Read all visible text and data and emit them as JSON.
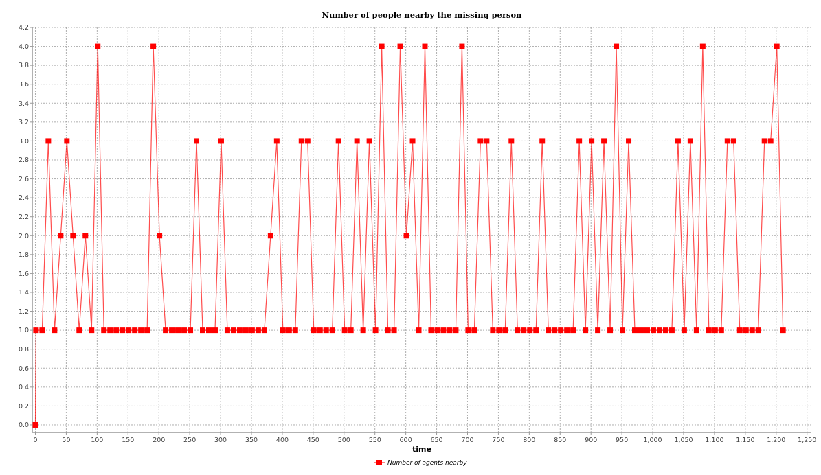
{
  "chart_data": {
    "type": "line",
    "title": "Number of people nearby the missing person",
    "xlabel": "time",
    "legend": "bottom",
    "grid": true,
    "marker": "square",
    "line_style": "solid",
    "xlim": [
      -5,
      1257
    ],
    "ylim": [
      -0.08,
      4.2
    ],
    "xticks": [
      0,
      50,
      100,
      150,
      200,
      250,
      300,
      350,
      400,
      450,
      500,
      550,
      600,
      650,
      700,
      750,
      800,
      850,
      900,
      950,
      {
        "value": 1000,
        "label": "1,000"
      },
      {
        "value": 1050,
        "label": "1,050"
      },
      {
        "value": 1100,
        "label": "1,100"
      },
      {
        "value": 1150,
        "label": "1,150"
      },
      {
        "value": 1200,
        "label": "1,200"
      },
      {
        "value": 1250,
        "label": "1,250"
      }
    ],
    "yticks": [
      {
        "value": 0,
        "label": "0.0"
      },
      0.2,
      0.4,
      0.6,
      0.8,
      {
        "value": 1,
        "label": "1.0"
      },
      1.2,
      1.4,
      1.6,
      1.8,
      {
        "value": 2,
        "label": "2.0"
      },
      2.2,
      2.4,
      2.6,
      2.8,
      {
        "value": 3,
        "label": "3.0"
      },
      3.2,
      3.4,
      3.6,
      3.8,
      {
        "value": 4,
        "label": "4.0"
      },
      4.2
    ],
    "x": [
      0,
      1,
      11,
      21,
      31,
      41,
      51,
      61,
      71,
      81,
      91,
      101,
      111,
      121,
      131,
      141,
      151,
      161,
      171,
      181,
      191,
      201,
      211,
      221,
      231,
      241,
      251,
      261,
      271,
      281,
      291,
      301,
      311,
      321,
      331,
      341,
      351,
      361,
      371,
      381,
      391,
      401,
      411,
      421,
      431,
      441,
      451,
      461,
      471,
      481,
      491,
      501,
      511,
      521,
      531,
      541,
      551,
      561,
      571,
      581,
      591,
      601,
      611,
      621,
      631,
      641,
      651,
      661,
      671,
      681,
      691,
      701,
      711,
      721,
      731,
      741,
      751,
      761,
      771,
      781,
      791,
      801,
      811,
      821,
      831,
      841,
      851,
      861,
      871,
      881,
      891,
      901,
      911,
      921,
      931,
      941,
      951,
      961,
      971,
      981,
      991,
      1001,
      1011,
      1021,
      1031,
      1041,
      1051,
      1061,
      1071,
      1081,
      1091,
      1101,
      1111,
      1121,
      1131,
      1141,
      1151,
      1161,
      1171,
      1181,
      1191,
      1201,
      1211
    ],
    "series": [
      {
        "name": "Number of agents nearby",
        "color": "#ff0000",
        "values": [
          0,
          1,
          1,
          3,
          1,
          2,
          3,
          2,
          1,
          2,
          1,
          4,
          1,
          1,
          1,
          1,
          1,
          1,
          1,
          1,
          4,
          2,
          1,
          1,
          1,
          1,
          1,
          3,
          1,
          1,
          1,
          3,
          1,
          1,
          1,
          1,
          1,
          1,
          1,
          2,
          3,
          1,
          1,
          1,
          3,
          3,
          1,
          1,
          1,
          1,
          3,
          1,
          1,
          3,
          1,
          3,
          1,
          4,
          1,
          1,
          4,
          2,
          3,
          1,
          4,
          1,
          1,
          1,
          1,
          1,
          4,
          1,
          1,
          3,
          3,
          1,
          1,
          1,
          3,
          1,
          1,
          1,
          1,
          3,
          1,
          1,
          1,
          1,
          1,
          3,
          1,
          3,
          1,
          3,
          1,
          4,
          1,
          3,
          1,
          1,
          1,
          1,
          1,
          1,
          1,
          3,
          1,
          3,
          1,
          4,
          1,
          1,
          1,
          3,
          3,
          1,
          1,
          1,
          1,
          3,
          3,
          4,
          1
        ]
      }
    ]
  }
}
